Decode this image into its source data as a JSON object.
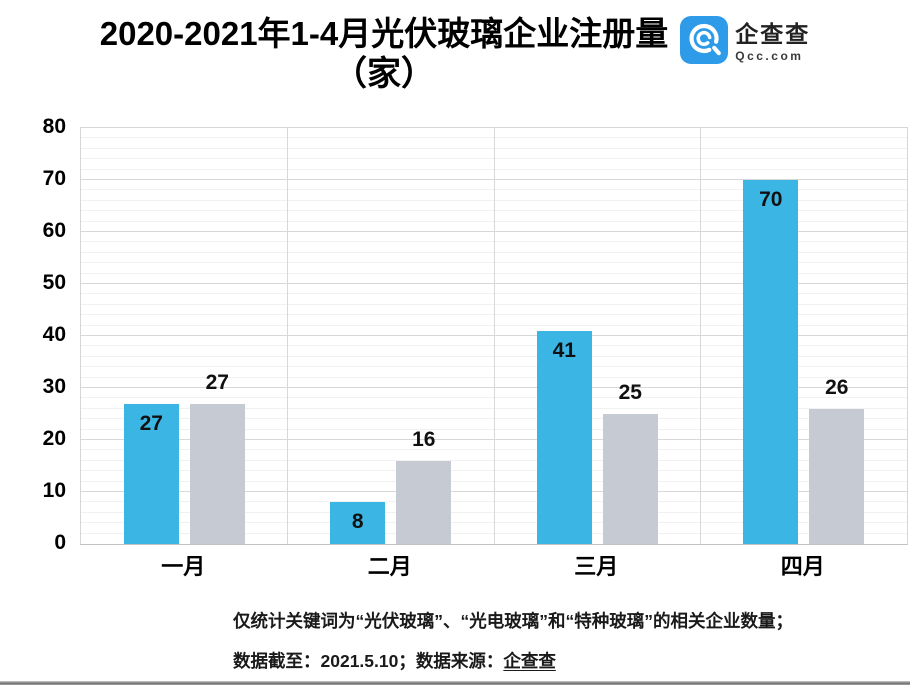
{
  "title": {
    "line1": "2020-2021年1-4月光伏玻璃企业注册量",
    "line2": "（家）"
  },
  "logo": {
    "name": "企查查",
    "domain": "Qcc.com",
    "brand_color": "#2E9BE8"
  },
  "chart_data": {
    "type": "bar",
    "title": "2020-2021年1-4月光伏玻璃企业注册量（家）",
    "categories": [
      "一月",
      "二月",
      "三月",
      "四月"
    ],
    "series": [
      {
        "name": "blue-series",
        "color": "#3BB6E4",
        "values": [
          27,
          8,
          41,
          70
        ],
        "label_position": "inside-top"
      },
      {
        "name": "gray-series",
        "color": "#C6CBD3",
        "values": [
          27,
          16,
          25,
          26
        ],
        "label_position": "above"
      }
    ],
    "xlabel": "",
    "ylabel": "",
    "ylim": [
      0,
      80
    ],
    "y_ticks": [
      0,
      10,
      20,
      30,
      40,
      50,
      60,
      70,
      80
    ],
    "y_major_step": 10,
    "y_minor_step": 2,
    "grid": true,
    "legend": "none"
  },
  "footer": {
    "line1": "仅统计关键词为“光伏玻璃”、“光电玻璃”和“特种玻璃”的相关企业数量；",
    "line2_prefix": "数据截至：2021.5.10；数据来源：",
    "line2_source": "企查查"
  },
  "colors": {
    "bar_blue": "#3BB6E4",
    "bar_gray": "#C6CBD3",
    "grid_major": "#d8d8d8",
    "grid_minor": "#f1f1f1",
    "logo_blue": "#2E9BE8"
  }
}
